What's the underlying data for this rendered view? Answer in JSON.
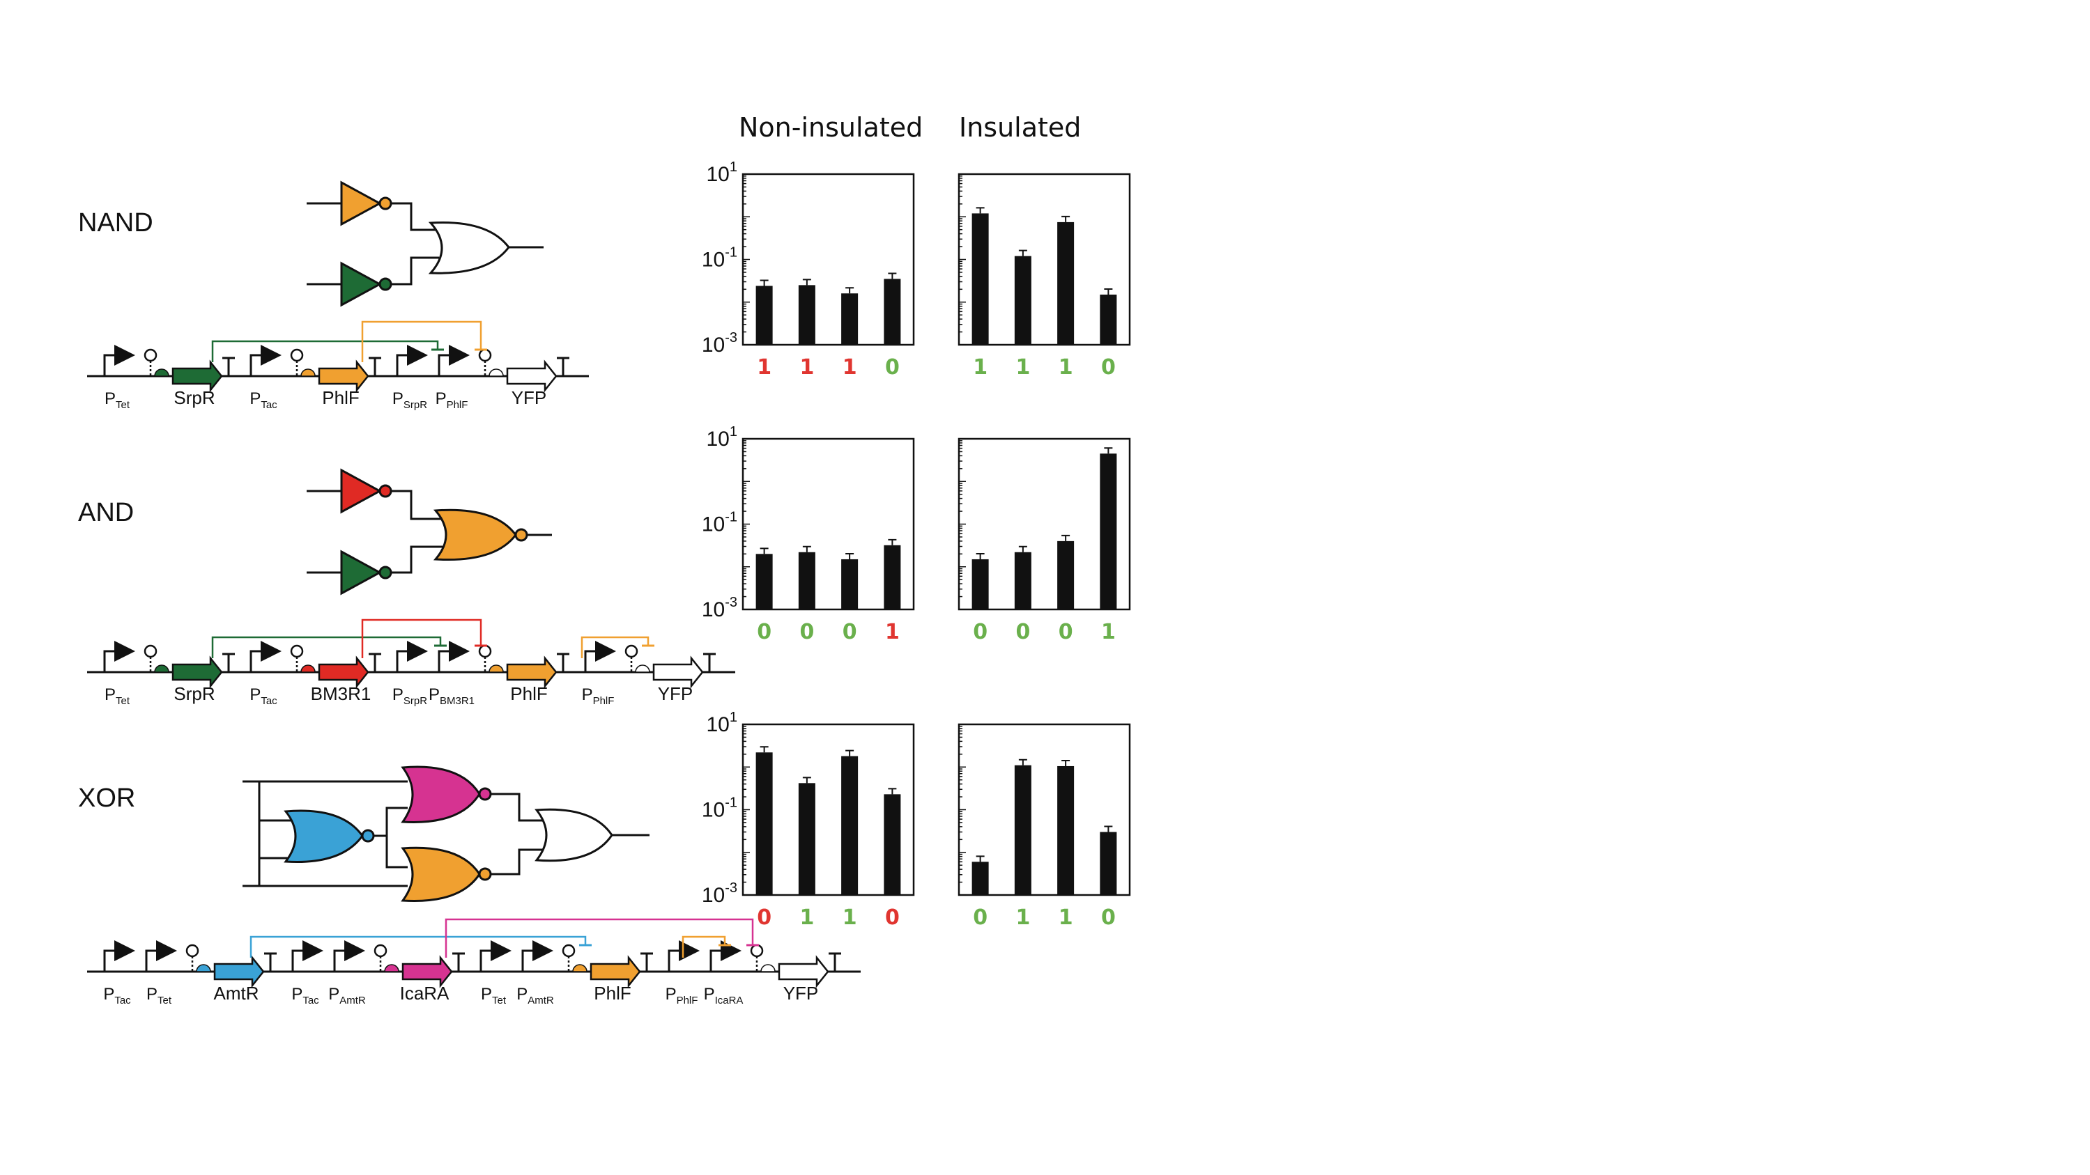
{
  "column_headers": [
    "Non-insulated",
    "Insulated"
  ],
  "colors": {
    "green": "#1e6b35",
    "orange": "#f0a030",
    "red": "#e02a24",
    "blue": "#3aa2d6",
    "magenta": "#d63391",
    "ok_text": "#6ab04c",
    "bad_text": "#e03530"
  },
  "y_tick_labels": {
    "top": {
      "base": "10",
      "exp": "1"
    },
    "mid": {
      "base": "10",
      "exp": "-1"
    },
    "bottom": {
      "base": "10",
      "exp": "-3"
    }
  },
  "gates": [
    {
      "name": "NAND",
      "parts": [
        {
          "kind": "promoter",
          "base": "P",
          "sub": "Tet"
        },
        {
          "kind": "cds",
          "color": "green",
          "label": "SrpR"
        },
        {
          "kind": "promoter",
          "base": "P",
          "sub": "Tac"
        },
        {
          "kind": "cds",
          "color": "orange",
          "label": "PhlF"
        },
        {
          "kind": "promoter",
          "base": "P",
          "sub": "SrpR"
        },
        {
          "kind": "promoter",
          "base": "P",
          "sub": "PhlF"
        },
        {
          "kind": "cds",
          "color": "white",
          "label": "YFP"
        }
      ],
      "bars": {
        "non_insulated": {
          "values": [
            0.024,
            0.025,
            0.016,
            0.035
          ],
          "outputs": [
            "1",
            "1",
            "1",
            "0"
          ],
          "output_colors": [
            "bad_text",
            "bad_text",
            "bad_text",
            "ok_text"
          ]
        },
        "insulated": {
          "values": [
            1.2,
            0.12,
            0.75,
            0.015
          ],
          "outputs": [
            "1",
            "1",
            "1",
            "0"
          ],
          "output_colors": [
            "ok_text",
            "ok_text",
            "ok_text",
            "ok_text"
          ]
        }
      }
    },
    {
      "name": "AND",
      "parts": [
        {
          "kind": "promoter",
          "base": "P",
          "sub": "Tet"
        },
        {
          "kind": "cds",
          "color": "green",
          "label": "SrpR"
        },
        {
          "kind": "promoter",
          "base": "P",
          "sub": "Tac"
        },
        {
          "kind": "cds",
          "color": "red",
          "label": "BM3R1"
        },
        {
          "kind": "promoter",
          "base": "P",
          "sub": "SrpR"
        },
        {
          "kind": "promoter",
          "base": "P",
          "sub": "BM3R1"
        },
        {
          "kind": "cds",
          "color": "orange",
          "label": "PhlF"
        },
        {
          "kind": "promoter",
          "base": "P",
          "sub": "PhlF"
        },
        {
          "kind": "cds",
          "color": "white",
          "label": "YFP"
        }
      ],
      "bars": {
        "non_insulated": {
          "values": [
            0.02,
            0.022,
            0.015,
            0.032
          ],
          "outputs": [
            "0",
            "0",
            "0",
            "1"
          ],
          "output_colors": [
            "ok_text",
            "ok_text",
            "ok_text",
            "bad_text"
          ]
        },
        "insulated": {
          "values": [
            0.015,
            0.022,
            0.04,
            4.5
          ],
          "outputs": [
            "0",
            "0",
            "0",
            "1"
          ],
          "output_colors": [
            "ok_text",
            "ok_text",
            "ok_text",
            "ok_text"
          ]
        }
      }
    },
    {
      "name": "XOR",
      "parts": [
        {
          "kind": "promoter",
          "base": "P",
          "sub": "Tac"
        },
        {
          "kind": "promoter",
          "base": "P",
          "sub": "Tet"
        },
        {
          "kind": "cds",
          "color": "blue",
          "label": "AmtR"
        },
        {
          "kind": "promoter",
          "base": "P",
          "sub": "Tac"
        },
        {
          "kind": "promoter",
          "base": "P",
          "sub": "AmtR"
        },
        {
          "kind": "cds",
          "color": "magenta",
          "label": "IcaRA"
        },
        {
          "kind": "promoter",
          "base": "P",
          "sub": "Tet"
        },
        {
          "kind": "promoter",
          "base": "P",
          "sub": "AmtR"
        },
        {
          "kind": "cds",
          "color": "orange",
          "label": "PhlF"
        },
        {
          "kind": "promoter",
          "base": "P",
          "sub": "PhlF"
        },
        {
          "kind": "promoter",
          "base": "P",
          "sub": "IcaRA"
        },
        {
          "kind": "cds",
          "color": "white",
          "label": "YFP"
        }
      ],
      "bars": {
        "non_insulated": {
          "values": [
            2.2,
            0.42,
            1.8,
            0.23
          ],
          "outputs": [
            "0",
            "1",
            "1",
            "0"
          ],
          "output_colors": [
            "bad_text",
            "ok_text",
            "ok_text",
            "bad_text"
          ]
        },
        "insulated": {
          "values": [
            0.006,
            1.1,
            1.05,
            0.03
          ],
          "outputs": [
            "0",
            "1",
            "1",
            "0"
          ],
          "output_colors": [
            "ok_text",
            "ok_text",
            "ok_text",
            "ok_text"
          ]
        }
      }
    }
  ]
}
